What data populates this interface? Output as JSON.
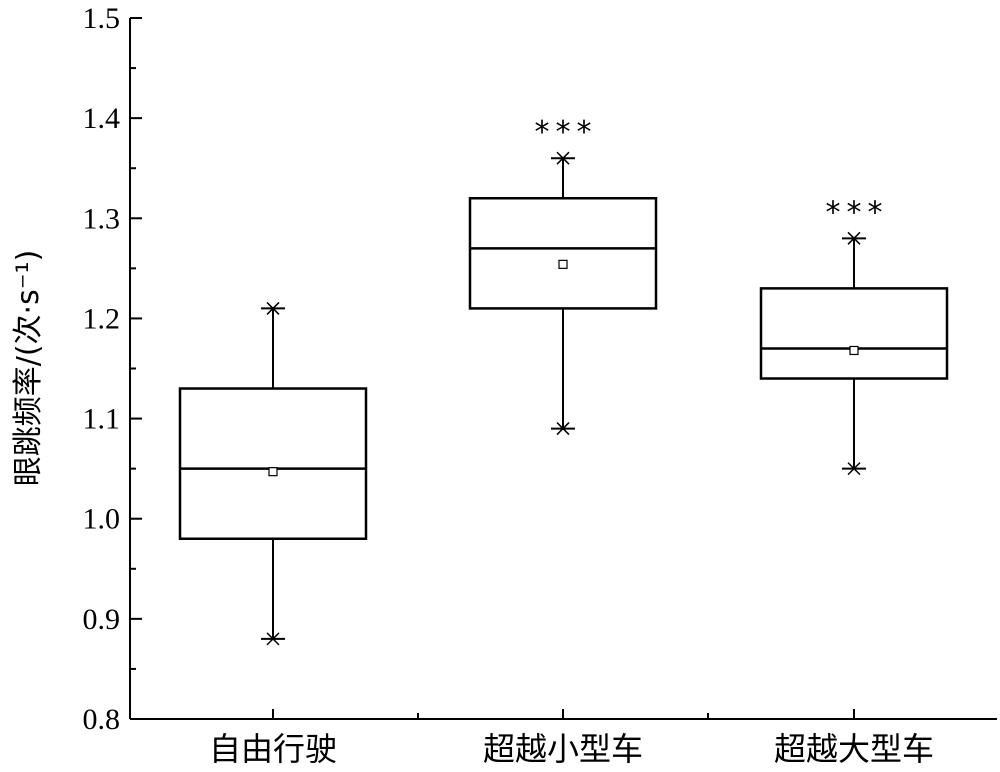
{
  "chart_data": {
    "type": "box",
    "ylabel": "眼跳频率/(次·s⁻¹)",
    "ylim": [
      0.8,
      1.5
    ],
    "yticks": [
      0.8,
      0.9,
      1.0,
      1.1,
      1.2,
      1.3,
      1.4,
      1.5
    ],
    "ytick_labels": [
      "0.8",
      "0.9",
      "1.0",
      "1.1",
      "1.2",
      "1.3",
      "1.4",
      "1.5"
    ],
    "grid": false,
    "categories": [
      "自由行驶",
      "超越小型车",
      "超越大型车"
    ],
    "boxes": [
      {
        "category": "自由行驶",
        "min": 0.88,
        "q1": 0.98,
        "median": 1.05,
        "q3": 1.13,
        "max": 1.21,
        "mean": 1.047,
        "significance": ""
      },
      {
        "category": "超越小型车",
        "min": 1.09,
        "q1": 1.21,
        "median": 1.27,
        "q3": 1.32,
        "max": 1.36,
        "mean": 1.254,
        "significance": "***"
      },
      {
        "category": "超越大型车",
        "min": 1.05,
        "q1": 1.14,
        "median": 1.17,
        "q3": 1.23,
        "max": 1.28,
        "mean": 1.168,
        "significance": "***"
      }
    ]
  }
}
